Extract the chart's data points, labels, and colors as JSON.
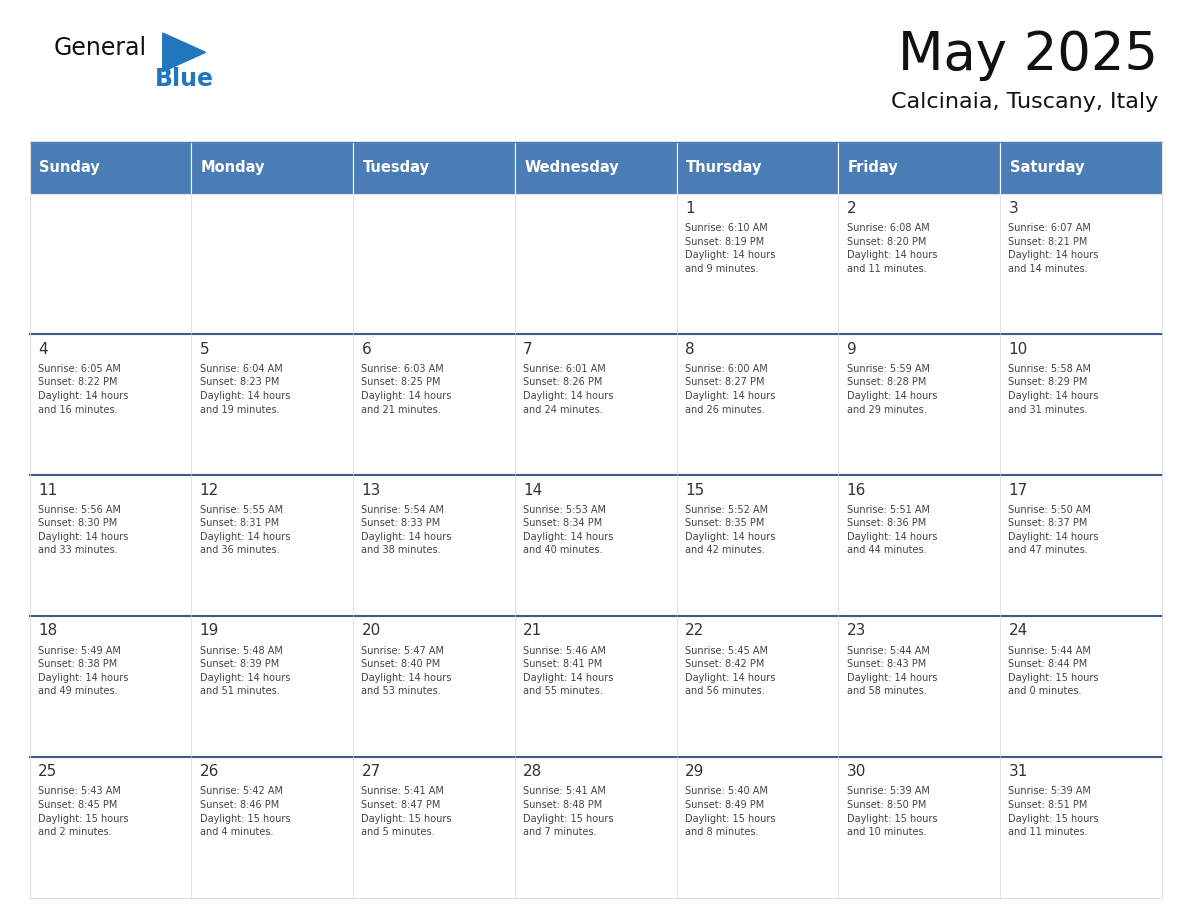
{
  "title": "May 2025",
  "subtitle": "Calcinaia, Tuscany, Italy",
  "days_of_week": [
    "Sunday",
    "Monday",
    "Tuesday",
    "Wednesday",
    "Thursday",
    "Friday",
    "Saturday"
  ],
  "header_bg": "#4A7DB5",
  "header_text": "#FFFFFF",
  "cell_bg": "#FFFFFF",
  "cell_border_week": "#3D5A8A",
  "cell_border_day": "#DDDDDD",
  "day_number_color": "#333333",
  "text_color": "#444444",
  "title_color": "#111111",
  "subtitle_color": "#111111",
  "logo_general_color": "#111111",
  "logo_blue_color": "#2176BE",
  "logo_triangle_color": "#2176BE",
  "weeks": [
    [
      {
        "day": "",
        "info": ""
      },
      {
        "day": "",
        "info": ""
      },
      {
        "day": "",
        "info": ""
      },
      {
        "day": "",
        "info": ""
      },
      {
        "day": "1",
        "info": "Sunrise: 6:10 AM\nSunset: 8:19 PM\nDaylight: 14 hours\nand 9 minutes."
      },
      {
        "day": "2",
        "info": "Sunrise: 6:08 AM\nSunset: 8:20 PM\nDaylight: 14 hours\nand 11 minutes."
      },
      {
        "day": "3",
        "info": "Sunrise: 6:07 AM\nSunset: 8:21 PM\nDaylight: 14 hours\nand 14 minutes."
      }
    ],
    [
      {
        "day": "4",
        "info": "Sunrise: 6:05 AM\nSunset: 8:22 PM\nDaylight: 14 hours\nand 16 minutes."
      },
      {
        "day": "5",
        "info": "Sunrise: 6:04 AM\nSunset: 8:23 PM\nDaylight: 14 hours\nand 19 minutes."
      },
      {
        "day": "6",
        "info": "Sunrise: 6:03 AM\nSunset: 8:25 PM\nDaylight: 14 hours\nand 21 minutes."
      },
      {
        "day": "7",
        "info": "Sunrise: 6:01 AM\nSunset: 8:26 PM\nDaylight: 14 hours\nand 24 minutes."
      },
      {
        "day": "8",
        "info": "Sunrise: 6:00 AM\nSunset: 8:27 PM\nDaylight: 14 hours\nand 26 minutes."
      },
      {
        "day": "9",
        "info": "Sunrise: 5:59 AM\nSunset: 8:28 PM\nDaylight: 14 hours\nand 29 minutes."
      },
      {
        "day": "10",
        "info": "Sunrise: 5:58 AM\nSunset: 8:29 PM\nDaylight: 14 hours\nand 31 minutes."
      }
    ],
    [
      {
        "day": "11",
        "info": "Sunrise: 5:56 AM\nSunset: 8:30 PM\nDaylight: 14 hours\nand 33 minutes."
      },
      {
        "day": "12",
        "info": "Sunrise: 5:55 AM\nSunset: 8:31 PM\nDaylight: 14 hours\nand 36 minutes."
      },
      {
        "day": "13",
        "info": "Sunrise: 5:54 AM\nSunset: 8:33 PM\nDaylight: 14 hours\nand 38 minutes."
      },
      {
        "day": "14",
        "info": "Sunrise: 5:53 AM\nSunset: 8:34 PM\nDaylight: 14 hours\nand 40 minutes."
      },
      {
        "day": "15",
        "info": "Sunrise: 5:52 AM\nSunset: 8:35 PM\nDaylight: 14 hours\nand 42 minutes."
      },
      {
        "day": "16",
        "info": "Sunrise: 5:51 AM\nSunset: 8:36 PM\nDaylight: 14 hours\nand 44 minutes."
      },
      {
        "day": "17",
        "info": "Sunrise: 5:50 AM\nSunset: 8:37 PM\nDaylight: 14 hours\nand 47 minutes."
      }
    ],
    [
      {
        "day": "18",
        "info": "Sunrise: 5:49 AM\nSunset: 8:38 PM\nDaylight: 14 hours\nand 49 minutes."
      },
      {
        "day": "19",
        "info": "Sunrise: 5:48 AM\nSunset: 8:39 PM\nDaylight: 14 hours\nand 51 minutes."
      },
      {
        "day": "20",
        "info": "Sunrise: 5:47 AM\nSunset: 8:40 PM\nDaylight: 14 hours\nand 53 minutes."
      },
      {
        "day": "21",
        "info": "Sunrise: 5:46 AM\nSunset: 8:41 PM\nDaylight: 14 hours\nand 55 minutes."
      },
      {
        "day": "22",
        "info": "Sunrise: 5:45 AM\nSunset: 8:42 PM\nDaylight: 14 hours\nand 56 minutes."
      },
      {
        "day": "23",
        "info": "Sunrise: 5:44 AM\nSunset: 8:43 PM\nDaylight: 14 hours\nand 58 minutes."
      },
      {
        "day": "24",
        "info": "Sunrise: 5:44 AM\nSunset: 8:44 PM\nDaylight: 15 hours\nand 0 minutes."
      }
    ],
    [
      {
        "day": "25",
        "info": "Sunrise: 5:43 AM\nSunset: 8:45 PM\nDaylight: 15 hours\nand 2 minutes."
      },
      {
        "day": "26",
        "info": "Sunrise: 5:42 AM\nSunset: 8:46 PM\nDaylight: 15 hours\nand 4 minutes."
      },
      {
        "day": "27",
        "info": "Sunrise: 5:41 AM\nSunset: 8:47 PM\nDaylight: 15 hours\nand 5 minutes."
      },
      {
        "day": "28",
        "info": "Sunrise: 5:41 AM\nSunset: 8:48 PM\nDaylight: 15 hours\nand 7 minutes."
      },
      {
        "day": "29",
        "info": "Sunrise: 5:40 AM\nSunset: 8:49 PM\nDaylight: 15 hours\nand 8 minutes."
      },
      {
        "day": "30",
        "info": "Sunrise: 5:39 AM\nSunset: 8:50 PM\nDaylight: 15 hours\nand 10 minutes."
      },
      {
        "day": "31",
        "info": "Sunrise: 5:39 AM\nSunset: 8:51 PM\nDaylight: 15 hours\nand 11 minutes."
      }
    ]
  ]
}
